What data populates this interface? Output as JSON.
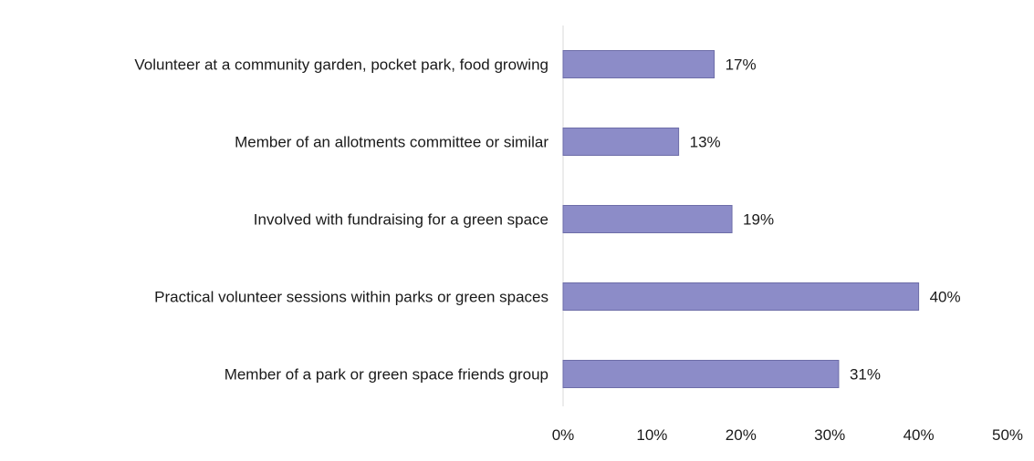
{
  "chart_data": {
    "type": "bar",
    "orientation": "horizontal",
    "categories": [
      "Volunteer at a community garden, pocket park, food growing",
      "Member of an allotments committee or similar",
      "Involved with fundraising for a green space",
      "Practical volunteer sessions within parks or green spaces",
      "Member of a park or green space friends group"
    ],
    "values": [
      17,
      13,
      19,
      40,
      31
    ],
    "value_labels": [
      "17%",
      "13%",
      "19%",
      "40%",
      "31%"
    ],
    "xlim": [
      0,
      50
    ],
    "x_ticks": [
      0,
      10,
      20,
      30,
      40,
      50
    ],
    "x_tick_labels": [
      "0%",
      "10%",
      "20%",
      "30%",
      "40%",
      "50%"
    ],
    "title": "",
    "xlabel": "",
    "ylabel": "",
    "grid": false,
    "legend": "none",
    "bar_color": "#8c8cc8",
    "bar_edge_color": "#6d6da8"
  }
}
